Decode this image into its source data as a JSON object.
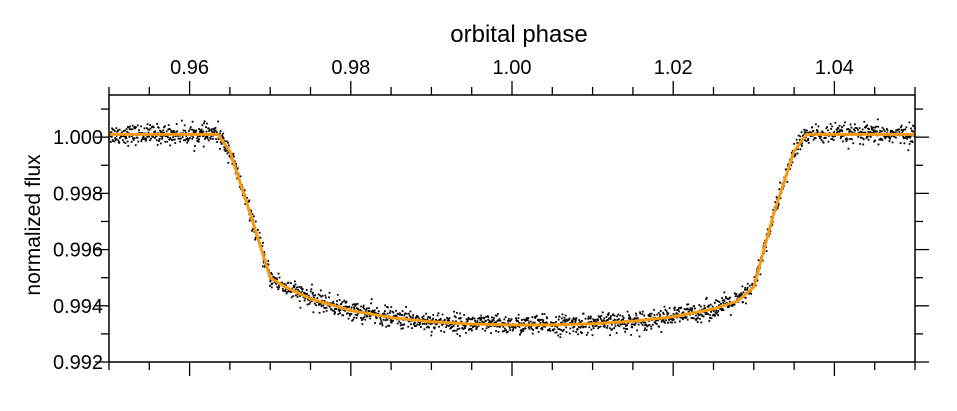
{
  "chart_data": {
    "type": "scatter",
    "title": "",
    "xlabel": "orbital phase",
    "ylabel": "normalized flux",
    "xlim": [
      0.95,
      1.05
    ],
    "ylim": [
      0.992,
      1.0015
    ],
    "x_ticks": [
      0.96,
      0.98,
      1.0,
      1.02,
      1.04
    ],
    "x_tick_labels": [
      "0.96",
      "0.98",
      "1.00",
      "1.02",
      "1.04"
    ],
    "y_ticks": [
      0.992,
      0.994,
      0.996,
      0.998,
      1.0
    ],
    "y_tick_labels": [
      "0.992",
      "0.994",
      "0.996",
      "0.998",
      "1.000"
    ],
    "x_axis_position": "top",
    "grid": false,
    "legend": "none",
    "colors": {
      "data": "#000000",
      "model": "#f39c12"
    },
    "series": [
      {
        "type": "scatter",
        "description_points": "observations",
        "noise_sigma": 0.00017,
        "n_points": 2200
      },
      {
        "type": "line",
        "x": [
          0.95,
          0.9635,
          0.965,
          0.9675,
          0.97,
          0.972,
          0.975,
          0.98,
          0.985,
          0.99,
          0.995,
          1.0,
          1.005,
          1.01,
          1.015,
          1.02,
          1.025,
          1.028,
          1.03,
          1.0325,
          1.035,
          1.0365,
          1.05
        ],
        "y": [
          1.0001,
          1.0001,
          0.9995,
          0.9973,
          0.995,
          0.99465,
          0.99425,
          0.99383,
          0.99358,
          0.99343,
          0.99335,
          0.99332,
          0.99332,
          0.99336,
          0.99345,
          0.99361,
          0.99389,
          0.99417,
          0.99467,
          0.9973,
          0.9995,
          1.0001,
          1.0001
        ]
      }
    ]
  }
}
